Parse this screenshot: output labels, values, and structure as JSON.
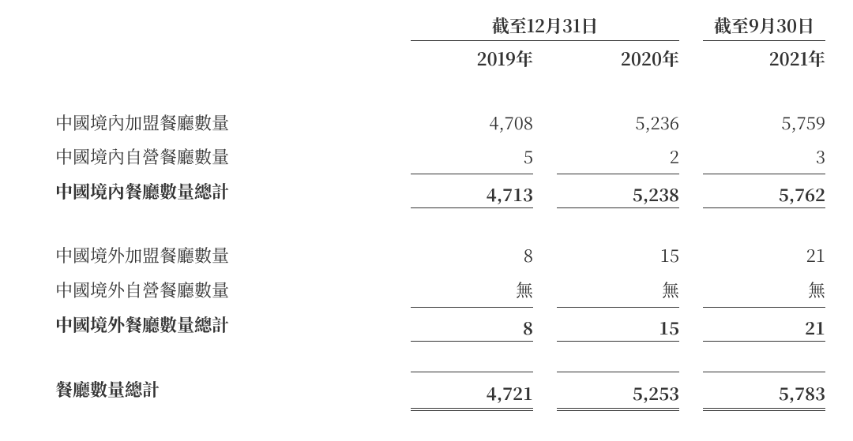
{
  "colors": {
    "text": "#333333",
    "rule": "#333333",
    "background": "#ffffff"
  },
  "typography": {
    "font_family": "SimSun / Noto Serif CJK TC, serif",
    "base_fontsize_pt": 16,
    "bold_weight": 700
  },
  "header": {
    "group_dec31": "截至12月31日",
    "group_sep30": "截至9月30日",
    "year_2019": "2019年",
    "year_2020": "2020年",
    "year_2021": "2021年"
  },
  "rows": {
    "dom_franchise": {
      "label": "中國境內加盟餐廳數量",
      "v2019": "4,708",
      "v2020": "5,236",
      "v2021": "5,759"
    },
    "dom_self": {
      "label": "中國境內自營餐廳數量",
      "v2019": "5",
      "v2020": "2",
      "v2021": "3"
    },
    "dom_total": {
      "label": "中國境內餐廳數量總計",
      "v2019": "4,713",
      "v2020": "5,238",
      "v2021": "5,762"
    },
    "intl_franchise": {
      "label": "中國境外加盟餐廳數量",
      "v2019": "8",
      "v2020": "15",
      "v2021": "21"
    },
    "intl_self": {
      "label": "中國境外自營餐廳數量",
      "v2019": "無",
      "v2020": "無",
      "v2021": "無"
    },
    "intl_total": {
      "label": "中國境外餐廳數量總計",
      "v2019": "8",
      "v2020": "15",
      "v2021": "21"
    },
    "grand_total": {
      "label": "餐廳數量總計",
      "v2019": "4,721",
      "v2020": "5,253",
      "v2021": "5,783"
    }
  }
}
